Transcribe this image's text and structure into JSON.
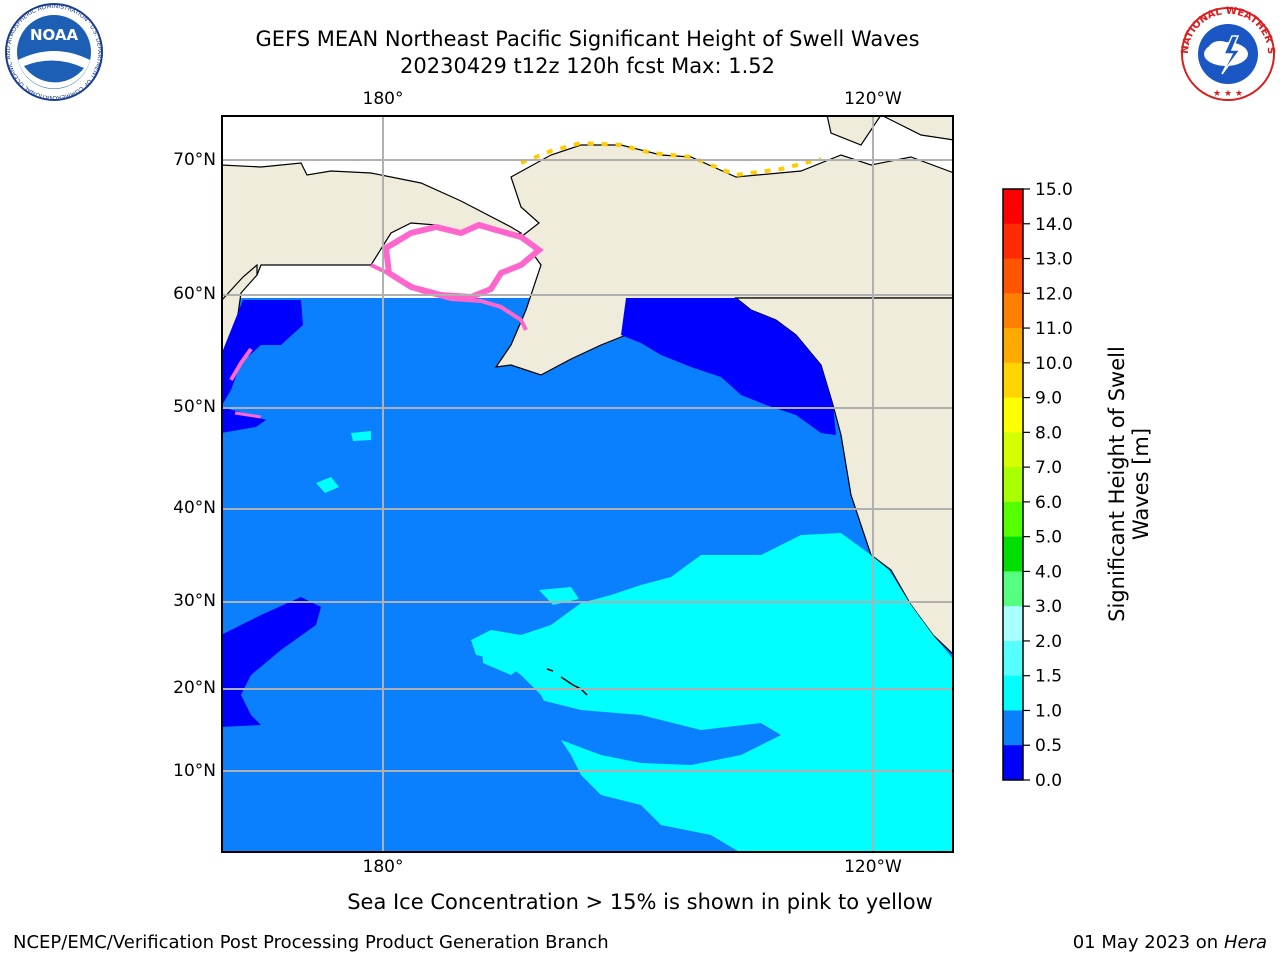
{
  "title": {
    "line1": "GEFS MEAN Northeast Pacific Significant Height of Swell Waves",
    "line2": "20230429 t12z 120h fcst   Max: 1.52"
  },
  "logos": {
    "left": "NOAA",
    "left_ring_text": "NATIONAL OCEANIC AND ATMOSPHERIC ADMINISTRATION · U.S. DEPARTMENT OF COMMERCE",
    "right_ring_text": "NATIONAL WEATHER SERVICE"
  },
  "map": {
    "lon_labels": [
      "180°",
      "120°W"
    ],
    "lat_labels": [
      "70°N",
      "60°N",
      "50°N",
      "40°N",
      "30°N",
      "20°N",
      "10°N"
    ],
    "colors": {
      "land": "#efecdc",
      "band_0_0_5": "#0000ff",
      "band_0_5_1_0": "#0a80ff",
      "band_1_0_1_5": "#00ffff",
      "ice_pink": "#ff66cc",
      "ice_yellow": "#ffcc00",
      "grid": "#b0b0b0"
    }
  },
  "colorbar": {
    "label": "Significant Height of Swell Waves [m]",
    "ticks": [
      "15.0",
      "14.0",
      "13.0",
      "12.0",
      "11.0",
      "10.0",
      "9.0",
      "8.0",
      "7.0",
      "6.0",
      "5.0",
      "4.0",
      "3.0",
      "2.0",
      "1.5",
      "1.0",
      "0.5",
      "0.0"
    ],
    "colors": [
      "#ff0000",
      "#ff2a00",
      "#ff5500",
      "#ff8000",
      "#ffaa00",
      "#ffd500",
      "#ffff00",
      "#d5ff00",
      "#aaff00",
      "#55ff00",
      "#00dd00",
      "#55ff80",
      "#aaffff",
      "#55ffff",
      "#00ffff",
      "#0a80ff",
      "#0000ff"
    ]
  },
  "note": "Sea Ice Concentration > 15% is shown in pink to yellow",
  "credit": "NCEP/EMC/Verification Post Processing Product Generation Branch",
  "date": "01 May 2023 on",
  "host": "Hera"
}
